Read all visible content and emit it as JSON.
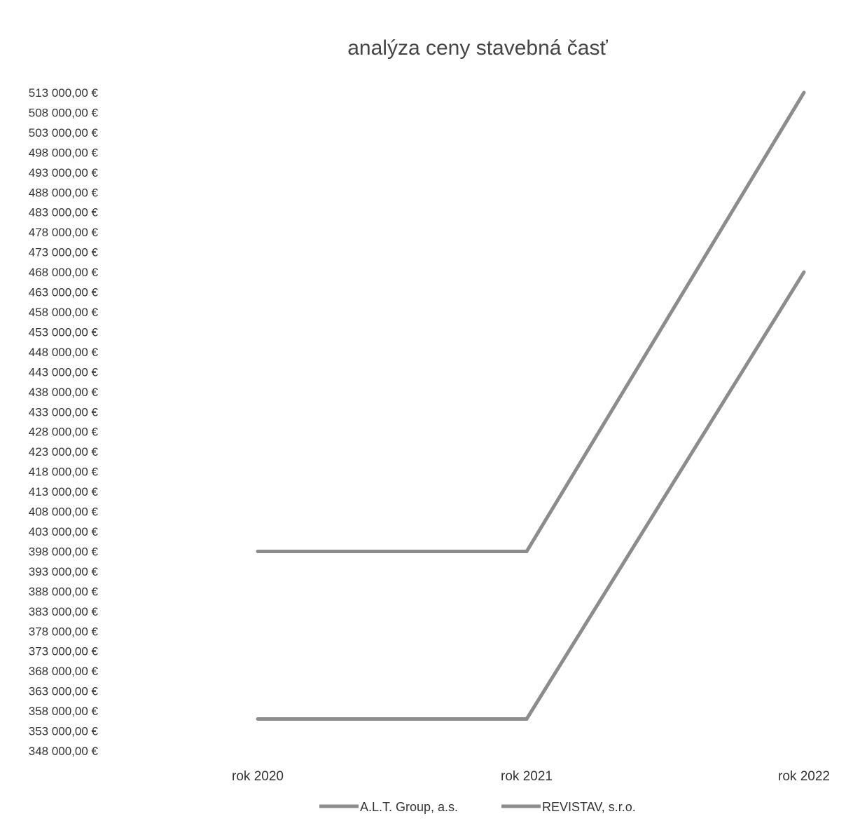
{
  "chart_data": {
    "type": "line",
    "title": "analýza ceny stavebná časť",
    "categories": [
      "rok 2020",
      "rok 2021",
      "rok 2022"
    ],
    "series": [
      {
        "name": "A.L.T. Group, a.s.",
        "values": [
          398000,
          398000,
          513000
        ]
      },
      {
        "name": "REVISTAV, s.r.o.",
        "values": [
          356000,
          356000,
          468000
        ]
      }
    ],
    "ylim": [
      348000,
      513000
    ],
    "ytick_step": 5000,
    "ytick_labels": [
      "513 000,00 €",
      "508 000,00 €",
      "503 000,00 €",
      "498 000,00 €",
      "493 000,00 €",
      "488 000,00 €",
      "483 000,00 €",
      "478 000,00 €",
      "473 000,00 €",
      "468 000,00 €",
      "463 000,00 €",
      "458 000,00 €",
      "453 000,00 €",
      "448 000,00 €",
      "443 000,00 €",
      "438 000,00 €",
      "433 000,00 €",
      "428 000,00 €",
      "423 000,00 €",
      "418 000,00 €",
      "413 000,00 €",
      "408 000,00 €",
      "403 000,00 €",
      "398 000,00 €",
      "393 000,00 €",
      "388 000,00 €",
      "383 000,00 €",
      "378 000,00 €",
      "373 000,00 €",
      "368 000,00 €",
      "363 000,00 €",
      "358 000,00 €",
      "353 000,00 €",
      "348 000,00 €"
    ],
    "xlabel": "",
    "ylabel": "",
    "grid": false,
    "legend_position": "bottom",
    "line_color": "#8c8c8c"
  }
}
